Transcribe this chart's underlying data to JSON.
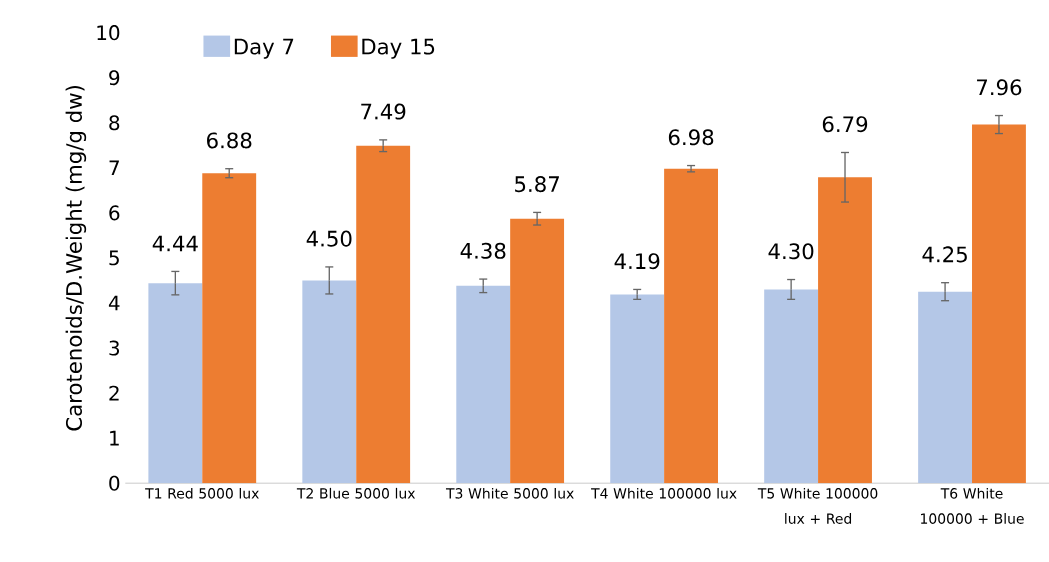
{
  "chart_data": {
    "type": "bar",
    "ylabel": "Carotenoids/D.Weight (mg/g dw)",
    "categories": [
      "T1 Red 5000 lux",
      "T2 Blue 5000 lux",
      "T3 White 5000 lux",
      "T4 White 100000 lux",
      "T5 White 100000 lux + Red",
      "T6 White 100000 + Blue"
    ],
    "series": [
      {
        "name": "Day 7",
        "color": "#b4c7e7",
        "values": [
          4.44,
          4.5,
          4.38,
          4.19,
          4.3,
          4.25
        ],
        "errors": [
          0.26,
          0.3,
          0.15,
          0.11,
          0.22,
          0.2
        ],
        "value_labels": [
          "4.44",
          "4.50",
          "4.38",
          "4.19",
          "4.30",
          "4.25"
        ]
      },
      {
        "name": "Day 15",
        "color": "#ed7d31",
        "values": [
          6.88,
          7.49,
          5.87,
          6.98,
          6.79,
          7.96
        ],
        "errors": [
          0.1,
          0.13,
          0.14,
          0.07,
          0.55,
          0.2
        ],
        "value_labels": [
          "6.88",
          "7.49",
          "5.87",
          "6.98",
          "6.79",
          "7.96"
        ]
      }
    ],
    "ylim": [
      0,
      10
    ],
    "yticks": [
      0,
      1,
      2,
      3,
      4,
      5,
      6,
      7,
      8,
      9,
      10
    ],
    "legend": "top left",
    "grid": false
  }
}
